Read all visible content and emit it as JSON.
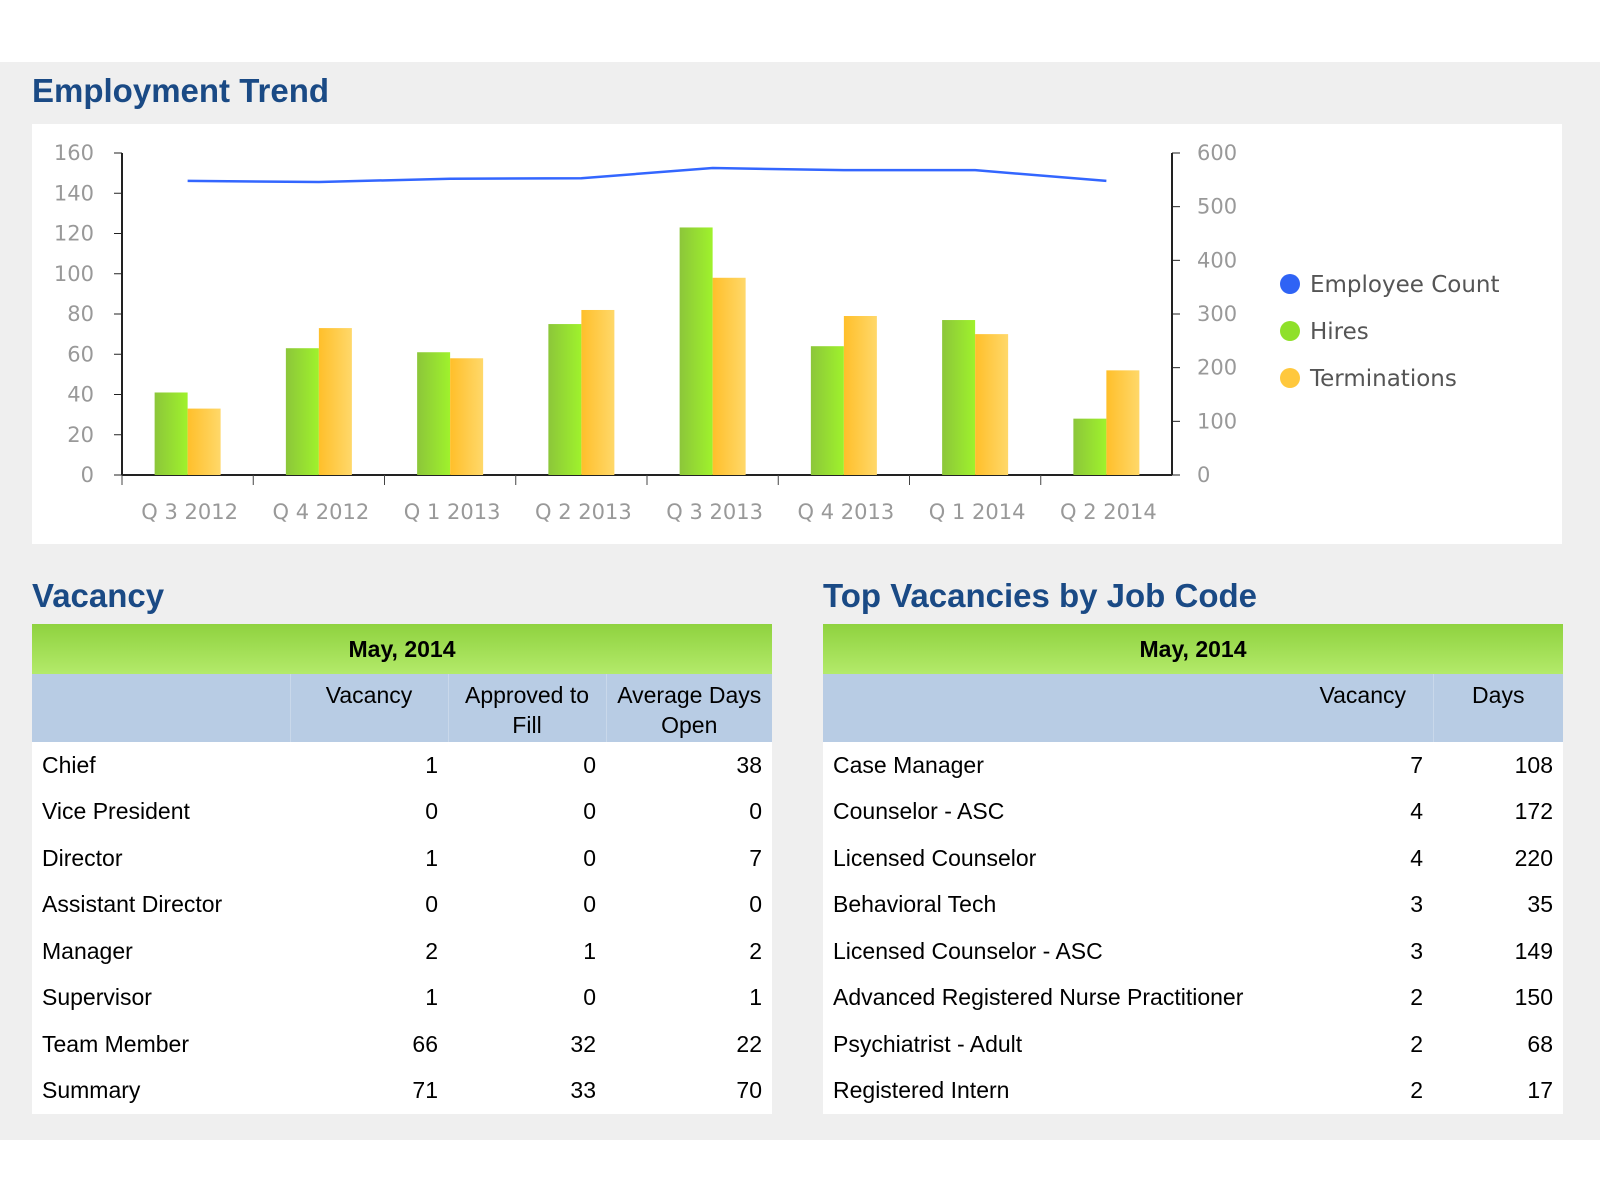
{
  "employment": {
    "title": "Employment Trend"
  },
  "chart_data": {
    "type": "bar",
    "title": "Employment Trend",
    "categories": [
      "Q 3 2012",
      "Q 4 2012",
      "Q 1 2013",
      "Q 2 2013",
      "Q 3 2013",
      "Q 4 2013",
      "Q 1 2014",
      "Q 2 2014"
    ],
    "series": [
      {
        "name": "Hires",
        "type": "bar",
        "axis": "left",
        "color": "#8fe02a",
        "values": [
          41,
          63,
          61,
          75,
          123,
          64,
          77,
          28
        ]
      },
      {
        "name": "Terminations",
        "type": "bar",
        "axis": "left",
        "color": "#ffc83d",
        "values": [
          33,
          73,
          58,
          82,
          98,
          79,
          70,
          52
        ]
      },
      {
        "name": "Employee Count",
        "type": "line",
        "axis": "right",
        "color": "#3366ff",
        "values": [
          548,
          546,
          552,
          553,
          572,
          568,
          568,
          548
        ]
      }
    ],
    "ylim": [
      0,
      160
    ],
    "yticks": [
      0,
      20,
      40,
      60,
      80,
      100,
      120,
      140,
      160
    ],
    "y2lim": [
      0,
      600
    ],
    "y2ticks": [
      0,
      100,
      200,
      300,
      400,
      500,
      600
    ],
    "legend_order": [
      "Employee Count",
      "Hires",
      "Terminations"
    ],
    "legend": "right",
    "grid": false
  },
  "vacancy": {
    "title": "Vacancy",
    "month": "May, 2014",
    "columns": [
      "",
      "Vacancy",
      "Approved to Fill",
      "Average Days Open"
    ],
    "rows": [
      [
        "Chief",
        "1",
        "0",
        "38"
      ],
      [
        "Vice President",
        "0",
        "0",
        "0"
      ],
      [
        "Director",
        "1",
        "0",
        "7"
      ],
      [
        "Assistant Director",
        "0",
        "0",
        "0"
      ],
      [
        "Manager",
        "2",
        "1",
        "2"
      ],
      [
        "Supervisor",
        "1",
        "0",
        "1"
      ],
      [
        "Team Member",
        "66",
        "32",
        "22"
      ],
      [
        "Summary",
        "71",
        "33",
        "70"
      ]
    ]
  },
  "top": {
    "title": "Top Vacancies by Job Code",
    "month": "May, 2014",
    "columns": [
      "",
      "Vacancy",
      "Days"
    ],
    "rows": [
      [
        "Case Manager",
        "7",
        "108"
      ],
      [
        "Counselor - ASC",
        "4",
        "172"
      ],
      [
        "Licensed Counselor",
        "4",
        "220"
      ],
      [
        "Behavioral Tech",
        "3",
        "35"
      ],
      [
        "Licensed Counselor - ASC",
        "3",
        "149"
      ],
      [
        "Advanced Registered Nurse Practitioner",
        "2",
        "150"
      ],
      [
        "Psychiatrist - Adult",
        "2",
        "68"
      ],
      [
        "Registered Intern",
        "2",
        "17"
      ]
    ]
  }
}
